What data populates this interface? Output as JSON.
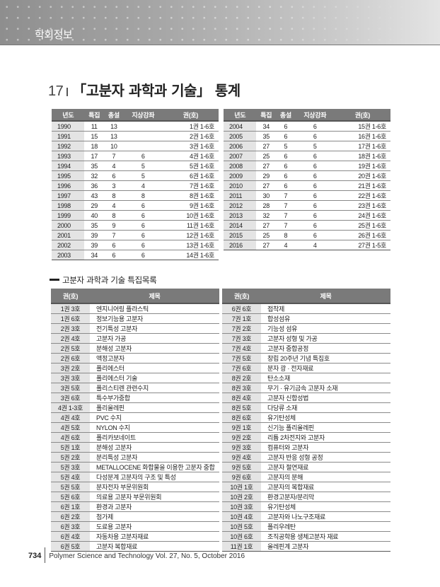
{
  "header": {
    "section": "학회정보"
  },
  "title": {
    "number": "17",
    "text": "「고분자 과학과 기술」 통계"
  },
  "stats": {
    "columns": [
      "년도",
      "특집",
      "총설",
      "지상강좌",
      "권(호)"
    ],
    "left": [
      [
        "1990",
        "11",
        "13",
        "",
        "1권 1-6호"
      ],
      [
        "1991",
        "15",
        "13",
        "",
        "2권 1-6호"
      ],
      [
        "1992",
        "18",
        "10",
        "",
        "3권 1-6호"
      ],
      [
        "1993",
        "17",
        "7",
        "6",
        "4권 1-6호"
      ],
      [
        "1994",
        "35",
        "4",
        "5",
        "5권 1-6호"
      ],
      [
        "1995",
        "32",
        "6",
        "5",
        "6권 1-6호"
      ],
      [
        "1996",
        "36",
        "3",
        "4",
        "7권 1-6호"
      ],
      [
        "1997",
        "43",
        "8",
        "8",
        "8권 1-6호"
      ],
      [
        "1998",
        "29",
        "4",
        "6",
        "9권 1-6호"
      ],
      [
        "1999",
        "40",
        "8",
        "6",
        "10권 1-6호"
      ],
      [
        "2000",
        "35",
        "9",
        "6",
        "11권 1-6호"
      ],
      [
        "2001",
        "39",
        "7",
        "6",
        "12권 1-6호"
      ],
      [
        "2002",
        "39",
        "6",
        "6",
        "13권 1-6호"
      ],
      [
        "2003",
        "34",
        "6",
        "6",
        "14권 1-6호"
      ]
    ],
    "right": [
      [
        "2004",
        "34",
        "6",
        "6",
        "15권 1-6호"
      ],
      [
        "2005",
        "35",
        "6",
        "6",
        "16권 1-6호"
      ],
      [
        "2006",
        "27",
        "5",
        "5",
        "17권 1-6호"
      ],
      [
        "2007",
        "25",
        "6",
        "6",
        "18권 1-6호"
      ],
      [
        "2008",
        "27",
        "6",
        "6",
        "19권 1-6호"
      ],
      [
        "2009",
        "29",
        "6",
        "6",
        "20권 1-6호"
      ],
      [
        "2010",
        "27",
        "6",
        "6",
        "21권 1-6호"
      ],
      [
        "2011",
        "30",
        "7",
        "6",
        "22권 1-6호"
      ],
      [
        "2012",
        "28",
        "7",
        "6",
        "23권 1-6호"
      ],
      [
        "2013",
        "32",
        "7",
        "6",
        "24권 1-6호"
      ],
      [
        "2014",
        "27",
        "7",
        "6",
        "25권 1-6호"
      ],
      [
        "2015",
        "25",
        "8",
        "6",
        "26권 1-6호"
      ],
      [
        "2016",
        "27",
        "4",
        "4",
        "27권 1-5호"
      ]
    ]
  },
  "special": {
    "heading": "고분자 과학과 기술 특집목록",
    "columns": [
      "권(호)",
      "제목"
    ],
    "left": [
      [
        "1권 3호",
        "엔지니어링 플라스틱"
      ],
      [
        "1권 6호",
        "정보기능용 고분자"
      ],
      [
        "2권 3호",
        "전기특성 고분자"
      ],
      [
        "2권 4호",
        "고분자 가공"
      ],
      [
        "2권 5호",
        "분해성 고분자"
      ],
      [
        "2권 6호",
        "액정고분자"
      ],
      [
        "3권 2호",
        "폴리에스터"
      ],
      [
        "3권 3호",
        "폴리에스터 기술"
      ],
      [
        "3권 5호",
        "폴리스티렌 관련수지"
      ],
      [
        "3권 6호",
        "특수부가중합"
      ],
      [
        "4권 1-3호",
        "폴리올레핀"
      ],
      [
        "4권 4호",
        "PVC 수지"
      ],
      [
        "4권 5호",
        "NYLON 수지"
      ],
      [
        "4권 6호",
        "폴리카보네이트"
      ],
      [
        "5권 1호",
        "분해성 고분자"
      ],
      [
        "5권 2호",
        "분리특성 고분자"
      ],
      [
        "5권 3호",
        "METALLOCENE 화합물을 이용한 고분자 중합"
      ],
      [
        "5권 4호",
        "다성분계 고분자의 구조 및 특성"
      ],
      [
        "5권 5호",
        "분자전자 부문위원회"
      ],
      [
        "5권 6호",
        "의료용 고분자 부문위원회"
      ],
      [
        "6권 1호",
        "환경과 고분자"
      ],
      [
        "6권 2호",
        "첨가제"
      ],
      [
        "6권 3호",
        "도료용 고분자"
      ],
      [
        "6권 4호",
        "자동차용 고분자재료"
      ],
      [
        "6권 5호",
        "고분자 복합재료"
      ]
    ],
    "right": [
      [
        "6권 6호",
        "접착제"
      ],
      [
        "7권 1호",
        "합성섬유"
      ],
      [
        "7권 2호",
        "기능성 섬유"
      ],
      [
        "7권 3호",
        "고분자 성형 및 가공"
      ],
      [
        "7권 4호",
        "고분자 중합공정"
      ],
      [
        "7권 5호",
        "창립 20주년 기념 특집호"
      ],
      [
        "7권 6호",
        "분자 광 · 전자재료"
      ],
      [
        "8권 2호",
        "탄소소재"
      ],
      [
        "8권 3호",
        "무기 · 유기금속 고분자 소재"
      ],
      [
        "8권 4호",
        "고분자 신합성법"
      ],
      [
        "8권 5호",
        "다당류 소재"
      ],
      [
        "8권 6호",
        "유기탄성체"
      ],
      [
        "9권 1호",
        "신기능 폴리올레핀"
      ],
      [
        "9권 2호",
        "리튬 2차전지와 고분자"
      ],
      [
        "9권 3호",
        "컴퓨터와 고분자"
      ],
      [
        "9권 4호",
        "고분자 반응 성형 공정"
      ],
      [
        "9권 5호",
        "고분자 절연재료"
      ],
      [
        "9권 6호",
        "고분자의 분해"
      ],
      [
        "10권 1호",
        "고분자의 복합재료"
      ],
      [
        "10권 2호",
        "환경고분자/분리막"
      ],
      [
        "10권 3호",
        "유기탄성체"
      ],
      [
        "10권 4호",
        "고분자와 나노구조재료"
      ],
      [
        "10권 5호",
        "폴리우레탄"
      ],
      [
        "10권 6호",
        "조직공학용 생체고분자 재료"
      ],
      [
        "11권 1호",
        "올레핀계 고분자"
      ]
    ]
  },
  "footer": {
    "page": "734",
    "journal": "Polymer Science and Technology  Vol. 27, No. 5, October 2016"
  }
}
